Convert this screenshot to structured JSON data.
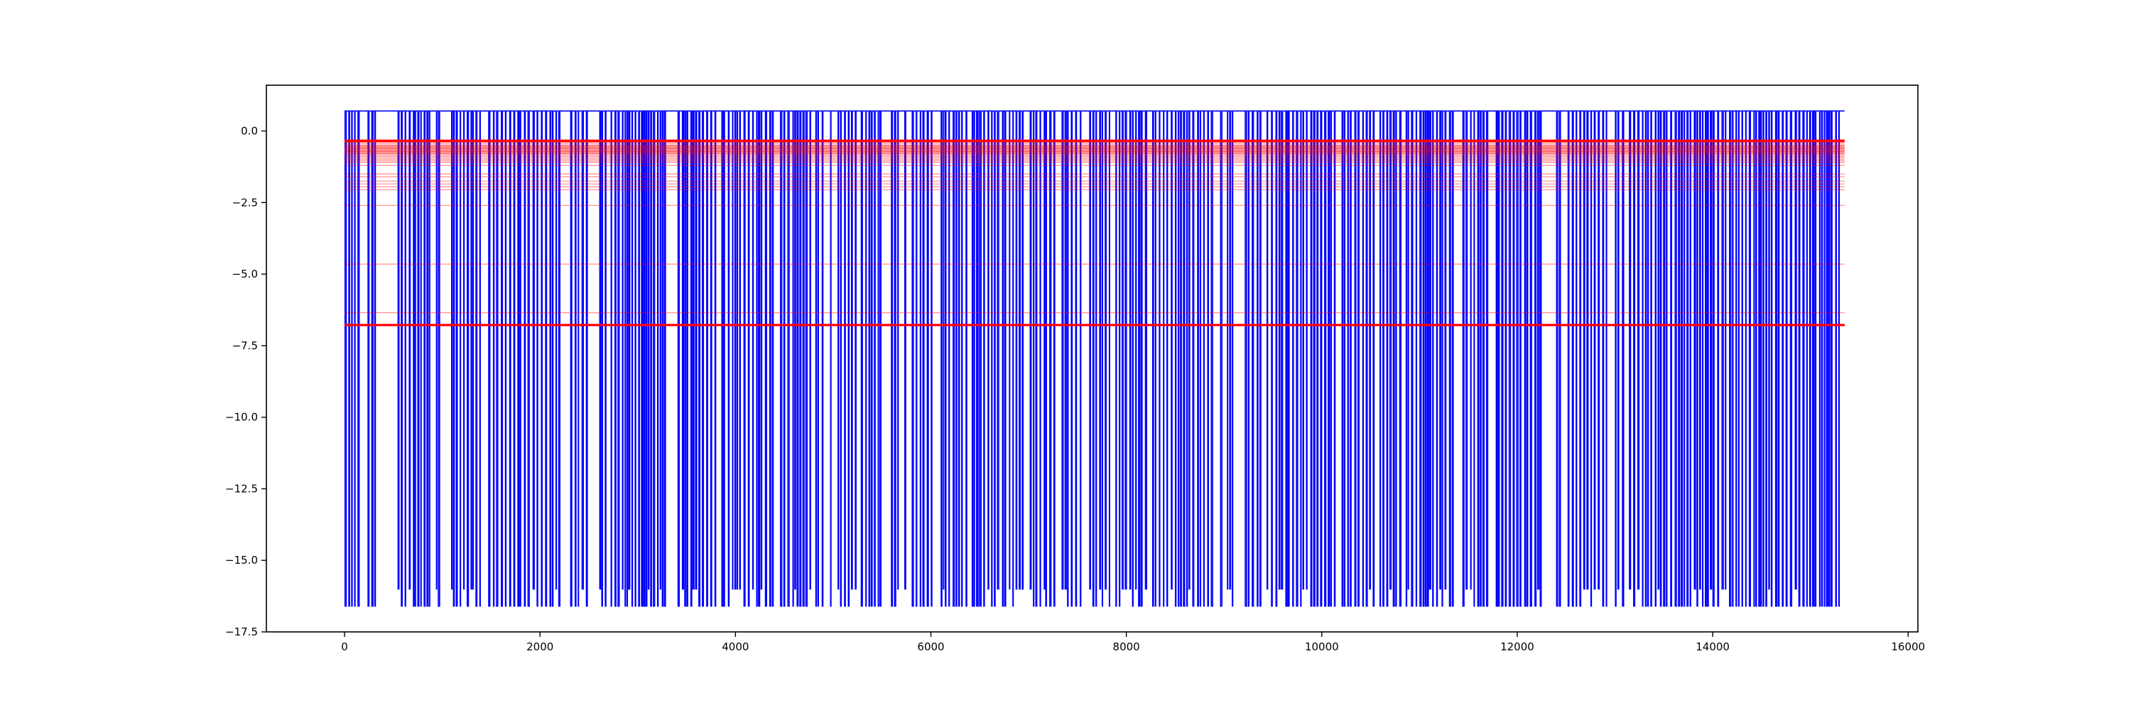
{
  "chart_data": {
    "type": "line",
    "title": "",
    "xlabel": "",
    "ylabel": "",
    "xlim": [
      -800,
      16100
    ],
    "ylim": [
      -17.5,
      1.6
    ],
    "grid": false,
    "legend": "none",
    "xticks": [
      0,
      2000,
      4000,
      6000,
      8000,
      10000,
      12000,
      14000,
      16000
    ],
    "yticks": [
      0.0,
      -2.5,
      -5.0,
      -7.5,
      -10.0,
      -12.5,
      -15.0,
      -17.5
    ],
    "xtick_labels": [
      "0",
      "2000",
      "4000",
      "6000",
      "8000",
      "10000",
      "12000",
      "14000",
      "16000"
    ],
    "ytick_labels": [
      "0.0",
      "−2.5",
      "−5.0",
      "−7.5",
      "−10.0",
      "−12.5",
      "−15.0",
      "−17.5"
    ],
    "signal": {
      "color": "#0000ff",
      "x_range": [
        0,
        15350
      ],
      "high_level": 0.7,
      "low_levels": [
        -16.0,
        -16.6
      ],
      "dip_regions": [
        [
          0,
          150
        ],
        [
          230,
          320
        ],
        [
          500,
          1000
        ],
        [
          1050,
          2200
        ],
        [
          2300,
          2550
        ],
        [
          2600,
          3300
        ],
        [
          3400,
          5500
        ],
        [
          5560,
          9100
        ],
        [
          9200,
          10150
        ],
        [
          10200,
          12250
        ],
        [
          12300,
          15300
        ]
      ]
    },
    "hlines": {
      "color": "#ff0000",
      "x_range": [
        0,
        15350
      ],
      "values": [
        -0.3,
        -0.35,
        -0.4,
        -0.45,
        -0.5,
        -0.52,
        -0.55,
        -0.58,
        -0.6,
        -0.62,
        -0.65,
        -0.68,
        -0.7,
        -0.72,
        -0.75,
        -0.78,
        -0.8,
        -0.85,
        -0.9,
        -0.95,
        -1.0,
        -1.05,
        -1.1,
        -1.2,
        -1.5,
        -1.6,
        -1.75,
        -1.85,
        -1.95,
        -2.05,
        -2.6,
        -4.65,
        -6.35,
        -6.75,
        -6.8
      ],
      "bold_values": [
        -0.35,
        -6.78
      ]
    }
  }
}
